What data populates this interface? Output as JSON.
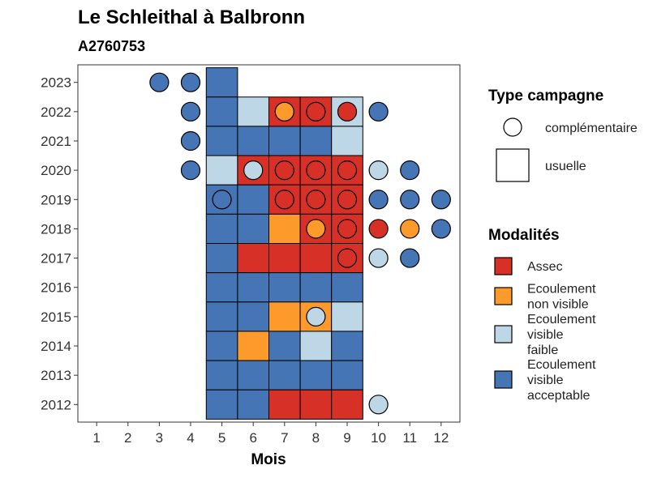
{
  "chart_data": {
    "type": "heatmap",
    "title": "Le Schleithal à Balbronn",
    "subtitle": "A2760753",
    "xlabel": "Mois",
    "ylabel": "",
    "x_ticks": [
      "1",
      "2",
      "3",
      "4",
      "5",
      "6",
      "7",
      "8",
      "9",
      "10",
      "11",
      "12"
    ],
    "y_ticks": [
      "2012",
      "2013",
      "2014",
      "2015",
      "2016",
      "2017",
      "2018",
      "2019",
      "2020",
      "2021",
      "2022",
      "2023"
    ],
    "colors": {
      "Assec": "#d73027",
      "Ecoulement non visible": "#fc9b2c",
      "Ecoulement visible faible": "#bdd7e7",
      "Ecoulement visible acceptable": "#4575b4"
    },
    "usuelle": [
      {
        "year": 2023,
        "month": 5,
        "modalite": "Ecoulement visible acceptable"
      },
      {
        "year": 2022,
        "month": 5,
        "modalite": "Ecoulement visible acceptable"
      },
      {
        "year": 2022,
        "month": 6,
        "modalite": "Ecoulement visible faible"
      },
      {
        "year": 2022,
        "month": 7,
        "modalite": "Assec"
      },
      {
        "year": 2022,
        "month": 8,
        "modalite": "Assec"
      },
      {
        "year": 2022,
        "month": 9,
        "modalite": "Ecoulement visible faible"
      },
      {
        "year": 2021,
        "month": 5,
        "modalite": "Ecoulement visible acceptable"
      },
      {
        "year": 2021,
        "month": 6,
        "modalite": "Ecoulement visible acceptable"
      },
      {
        "year": 2021,
        "month": 7,
        "modalite": "Ecoulement visible acceptable"
      },
      {
        "year": 2021,
        "month": 8,
        "modalite": "Ecoulement visible acceptable"
      },
      {
        "year": 2021,
        "month": 9,
        "modalite": "Ecoulement visible faible"
      },
      {
        "year": 2020,
        "month": 5,
        "modalite": "Ecoulement visible faible"
      },
      {
        "year": 2020,
        "month": 6,
        "modalite": "Assec"
      },
      {
        "year": 2020,
        "month": 7,
        "modalite": "Assec"
      },
      {
        "year": 2020,
        "month": 8,
        "modalite": "Assec"
      },
      {
        "year": 2020,
        "month": 9,
        "modalite": "Assec"
      },
      {
        "year": 2019,
        "month": 5,
        "modalite": "Ecoulement visible acceptable"
      },
      {
        "year": 2019,
        "month": 6,
        "modalite": "Ecoulement visible acceptable"
      },
      {
        "year": 2019,
        "month": 7,
        "modalite": "Assec"
      },
      {
        "year": 2019,
        "month": 8,
        "modalite": "Assec"
      },
      {
        "year": 2019,
        "month": 9,
        "modalite": "Assec"
      },
      {
        "year": 2018,
        "month": 5,
        "modalite": "Ecoulement visible acceptable"
      },
      {
        "year": 2018,
        "month": 6,
        "modalite": "Ecoulement visible acceptable"
      },
      {
        "year": 2018,
        "month": 7,
        "modalite": "Ecoulement non visible"
      },
      {
        "year": 2018,
        "month": 8,
        "modalite": "Assec"
      },
      {
        "year": 2018,
        "month": 9,
        "modalite": "Assec"
      },
      {
        "year": 2017,
        "month": 5,
        "modalite": "Ecoulement visible acceptable"
      },
      {
        "year": 2017,
        "month": 6,
        "modalite": "Assec"
      },
      {
        "year": 2017,
        "month": 7,
        "modalite": "Assec"
      },
      {
        "year": 2017,
        "month": 8,
        "modalite": "Assec"
      },
      {
        "year": 2017,
        "month": 9,
        "modalite": "Assec"
      },
      {
        "year": 2016,
        "month": 5,
        "modalite": "Ecoulement visible acceptable"
      },
      {
        "year": 2016,
        "month": 6,
        "modalite": "Ecoulement visible acceptable"
      },
      {
        "year": 2016,
        "month": 7,
        "modalite": "Ecoulement visible acceptable"
      },
      {
        "year": 2016,
        "month": 8,
        "modalite": "Ecoulement visible acceptable"
      },
      {
        "year": 2016,
        "month": 9,
        "modalite": "Ecoulement visible acceptable"
      },
      {
        "year": 2015,
        "month": 5,
        "modalite": "Ecoulement visible acceptable"
      },
      {
        "year": 2015,
        "month": 6,
        "modalite": "Ecoulement visible acceptable"
      },
      {
        "year": 2015,
        "month": 7,
        "modalite": "Ecoulement non visible"
      },
      {
        "year": 2015,
        "month": 8,
        "modalite": "Ecoulement non visible"
      },
      {
        "year": 2015,
        "month": 9,
        "modalite": "Ecoulement visible faible"
      },
      {
        "year": 2014,
        "month": 5,
        "modalite": "Ecoulement visible acceptable"
      },
      {
        "year": 2014,
        "month": 6,
        "modalite": "Ecoulement non visible"
      },
      {
        "year": 2014,
        "month": 7,
        "modalite": "Ecoulement visible acceptable"
      },
      {
        "year": 2014,
        "month": 8,
        "modalite": "Ecoulement visible faible"
      },
      {
        "year": 2014,
        "month": 9,
        "modalite": "Ecoulement visible acceptable"
      },
      {
        "year": 2013,
        "month": 5,
        "modalite": "Ecoulement visible acceptable"
      },
      {
        "year": 2013,
        "month": 6,
        "modalite": "Ecoulement visible acceptable"
      },
      {
        "year": 2013,
        "month": 7,
        "modalite": "Ecoulement visible acceptable"
      },
      {
        "year": 2013,
        "month": 8,
        "modalite": "Ecoulement visible acceptable"
      },
      {
        "year": 2013,
        "month": 9,
        "modalite": "Ecoulement visible acceptable"
      },
      {
        "year": 2012,
        "month": 5,
        "modalite": "Ecoulement visible acceptable"
      },
      {
        "year": 2012,
        "month": 6,
        "modalite": "Ecoulement visible acceptable"
      },
      {
        "year": 2012,
        "month": 7,
        "modalite": "Assec"
      },
      {
        "year": 2012,
        "month": 8,
        "modalite": "Assec"
      },
      {
        "year": 2012,
        "month": 9,
        "modalite": "Assec"
      }
    ],
    "complementaire": [
      {
        "year": 2023,
        "month": 3,
        "modalite": "Ecoulement visible acceptable"
      },
      {
        "year": 2023,
        "month": 4,
        "modalite": "Ecoulement visible acceptable"
      },
      {
        "year": 2022,
        "month": 4,
        "modalite": "Ecoulement visible acceptable"
      },
      {
        "year": 2022,
        "month": 7,
        "modalite": "Ecoulement non visible"
      },
      {
        "year": 2022,
        "month": 8,
        "modalite": "Assec"
      },
      {
        "year": 2022,
        "month": 9,
        "modalite": "Assec"
      },
      {
        "year": 2022,
        "month": 10,
        "modalite": "Ecoulement visible acceptable"
      },
      {
        "year": 2021,
        "month": 4,
        "modalite": "Ecoulement visible acceptable"
      },
      {
        "year": 2020,
        "month": 4,
        "modalite": "Ecoulement visible acceptable"
      },
      {
        "year": 2020,
        "month": 6,
        "modalite": "Ecoulement visible faible"
      },
      {
        "year": 2020,
        "month": 7,
        "modalite": "Assec"
      },
      {
        "year": 2020,
        "month": 8,
        "modalite": "Assec"
      },
      {
        "year": 2020,
        "month": 9,
        "modalite": "Assec"
      },
      {
        "year": 2020,
        "month": 10,
        "modalite": "Ecoulement visible faible"
      },
      {
        "year": 2020,
        "month": 11,
        "modalite": "Ecoulement visible acceptable"
      },
      {
        "year": 2019,
        "month": 5,
        "modalite": "Ecoulement visible acceptable"
      },
      {
        "year": 2019,
        "month": 7,
        "modalite": "Assec"
      },
      {
        "year": 2019,
        "month": 8,
        "modalite": "Assec"
      },
      {
        "year": 2019,
        "month": 9,
        "modalite": "Assec"
      },
      {
        "year": 2019,
        "month": 10,
        "modalite": "Ecoulement visible acceptable"
      },
      {
        "year": 2019,
        "month": 11,
        "modalite": "Ecoulement visible acceptable"
      },
      {
        "year": 2019,
        "month": 12,
        "modalite": "Ecoulement visible acceptable"
      },
      {
        "year": 2018,
        "month": 8,
        "modalite": "Ecoulement non visible"
      },
      {
        "year": 2018,
        "month": 9,
        "modalite": "Assec"
      },
      {
        "year": 2018,
        "month": 10,
        "modalite": "Assec"
      },
      {
        "year": 2018,
        "month": 11,
        "modalite": "Ecoulement non visible"
      },
      {
        "year": 2018,
        "month": 12,
        "modalite": "Ecoulement visible acceptable"
      },
      {
        "year": 2017,
        "month": 9,
        "modalite": "Assec"
      },
      {
        "year": 2017,
        "month": 10,
        "modalite": "Ecoulement visible faible"
      },
      {
        "year": 2017,
        "month": 11,
        "modalite": "Ecoulement visible acceptable"
      },
      {
        "year": 2015,
        "month": 8,
        "modalite": "Ecoulement visible faible"
      },
      {
        "year": 2012,
        "month": 10,
        "modalite": "Ecoulement visible faible"
      }
    ],
    "legend": {
      "position": "right",
      "type_title": "Type campagne",
      "type_items": [
        {
          "shape": "circle",
          "label": "complémentaire"
        },
        {
          "shape": "square",
          "label": "usuelle"
        }
      ],
      "modalites_title": "Modalités",
      "modalites_items": [
        {
          "key": "Assec",
          "lines": [
            "Assec"
          ]
        },
        {
          "key": "Ecoulement non visible",
          "lines": [
            "Ecoulement",
            "non visible"
          ]
        },
        {
          "key": "Ecoulement visible faible",
          "lines": [
            "Ecoulement",
            "visible",
            "faible"
          ]
        },
        {
          "key": "Ecoulement visible acceptable",
          "lines": [
            "Ecoulement",
            "visible",
            "acceptable"
          ]
        }
      ]
    }
  }
}
